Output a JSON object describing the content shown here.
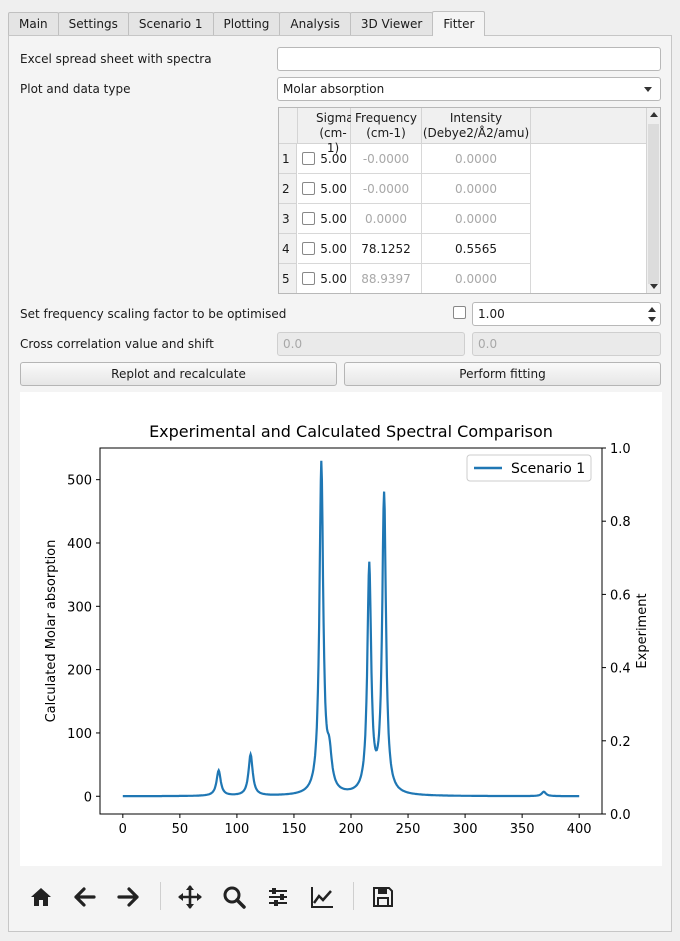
{
  "tabs": [
    {
      "label": "Main",
      "active": false
    },
    {
      "label": "Settings",
      "active": false
    },
    {
      "label": "Scenario 1",
      "active": false
    },
    {
      "label": "Plotting",
      "active": false
    },
    {
      "label": "Analysis",
      "active": false
    },
    {
      "label": "3D Viewer",
      "active": false
    },
    {
      "label": "Fitter",
      "active": true
    }
  ],
  "form": {
    "excel_label": "Excel spread sheet with spectra",
    "excel_value": "",
    "plot_type_label": "Plot and data type",
    "plot_type_value": "Molar absorption",
    "scaling_label": "Set frequency scaling factor to be optimised",
    "scaling_checked": false,
    "scaling_value": "1.00",
    "cross_label": "Cross correlation value and shift",
    "cross_value": "0.0",
    "shift_value": "0.0",
    "replot_button": "Replot and recalculate",
    "fit_button": "Perform fitting"
  },
  "table": {
    "headers": {
      "sigma_1": "Sigma",
      "sigma_2": "(cm-1)",
      "freq_1": "Frequency",
      "freq_2": "(cm-1)",
      "int_1": "Intensity",
      "int_2": "(Debye2/Å2/amu)"
    },
    "rows": [
      {
        "num": "1",
        "sigma": "5.00",
        "freq": "-0.0000",
        "intensity": "0.0000",
        "active": false
      },
      {
        "num": "2",
        "sigma": "5.00",
        "freq": "-0.0000",
        "intensity": "0.0000",
        "active": false
      },
      {
        "num": "3",
        "sigma": "5.00",
        "freq": "0.0000",
        "intensity": "0.0000",
        "active": false
      },
      {
        "num": "4",
        "sigma": "5.00",
        "freq": "78.1252",
        "intensity": "0.5565",
        "active": true
      },
      {
        "num": "5",
        "sigma": "5.00",
        "freq": "88.9397",
        "intensity": "0.0000",
        "active": false
      }
    ]
  },
  "chart_data": {
    "type": "line",
    "title": "Experimental and Calculated Spectral Comparison",
    "ylabel": "Calculated Molar absorption",
    "y2label": "Experiment",
    "xlim": [
      -20,
      420
    ],
    "ylim": [
      -28,
      550
    ],
    "y2lim": [
      0,
      1.0
    ],
    "x_ticks": [
      "0",
      "50",
      "100",
      "150",
      "200",
      "250",
      "300",
      "350",
      "400"
    ],
    "y_ticks": [
      "0",
      "100",
      "200",
      "300",
      "400",
      "500"
    ],
    "y2_ticks": [
      "0.0",
      "0.2",
      "0.4",
      "0.6",
      "0.8",
      "1.0"
    ],
    "legend_position": "top-right",
    "color": "#1f77b4",
    "series": [
      {
        "name": "Scenario 1",
        "peaks": [
          {
            "x": 84,
            "height": 40,
            "width": 2.2
          },
          {
            "x": 112,
            "height": 65,
            "width": 2.2
          },
          {
            "x": 174,
            "height": 522,
            "width": 2.0
          },
          {
            "x": 181,
            "height": 52,
            "width": 2.6
          },
          {
            "x": 216,
            "height": 358,
            "width": 2.0
          },
          {
            "x": 229,
            "height": 472,
            "width": 2.0
          },
          {
            "x": 369,
            "height": 7,
            "width": 2.2
          }
        ]
      }
    ]
  },
  "toolbar": {
    "icons": [
      "home-icon",
      "back-arrow-icon",
      "forward-arrow-icon",
      "pan-icon",
      "zoom-icon",
      "configure-subplots-icon",
      "edit-axes-icon",
      "save-icon"
    ]
  }
}
